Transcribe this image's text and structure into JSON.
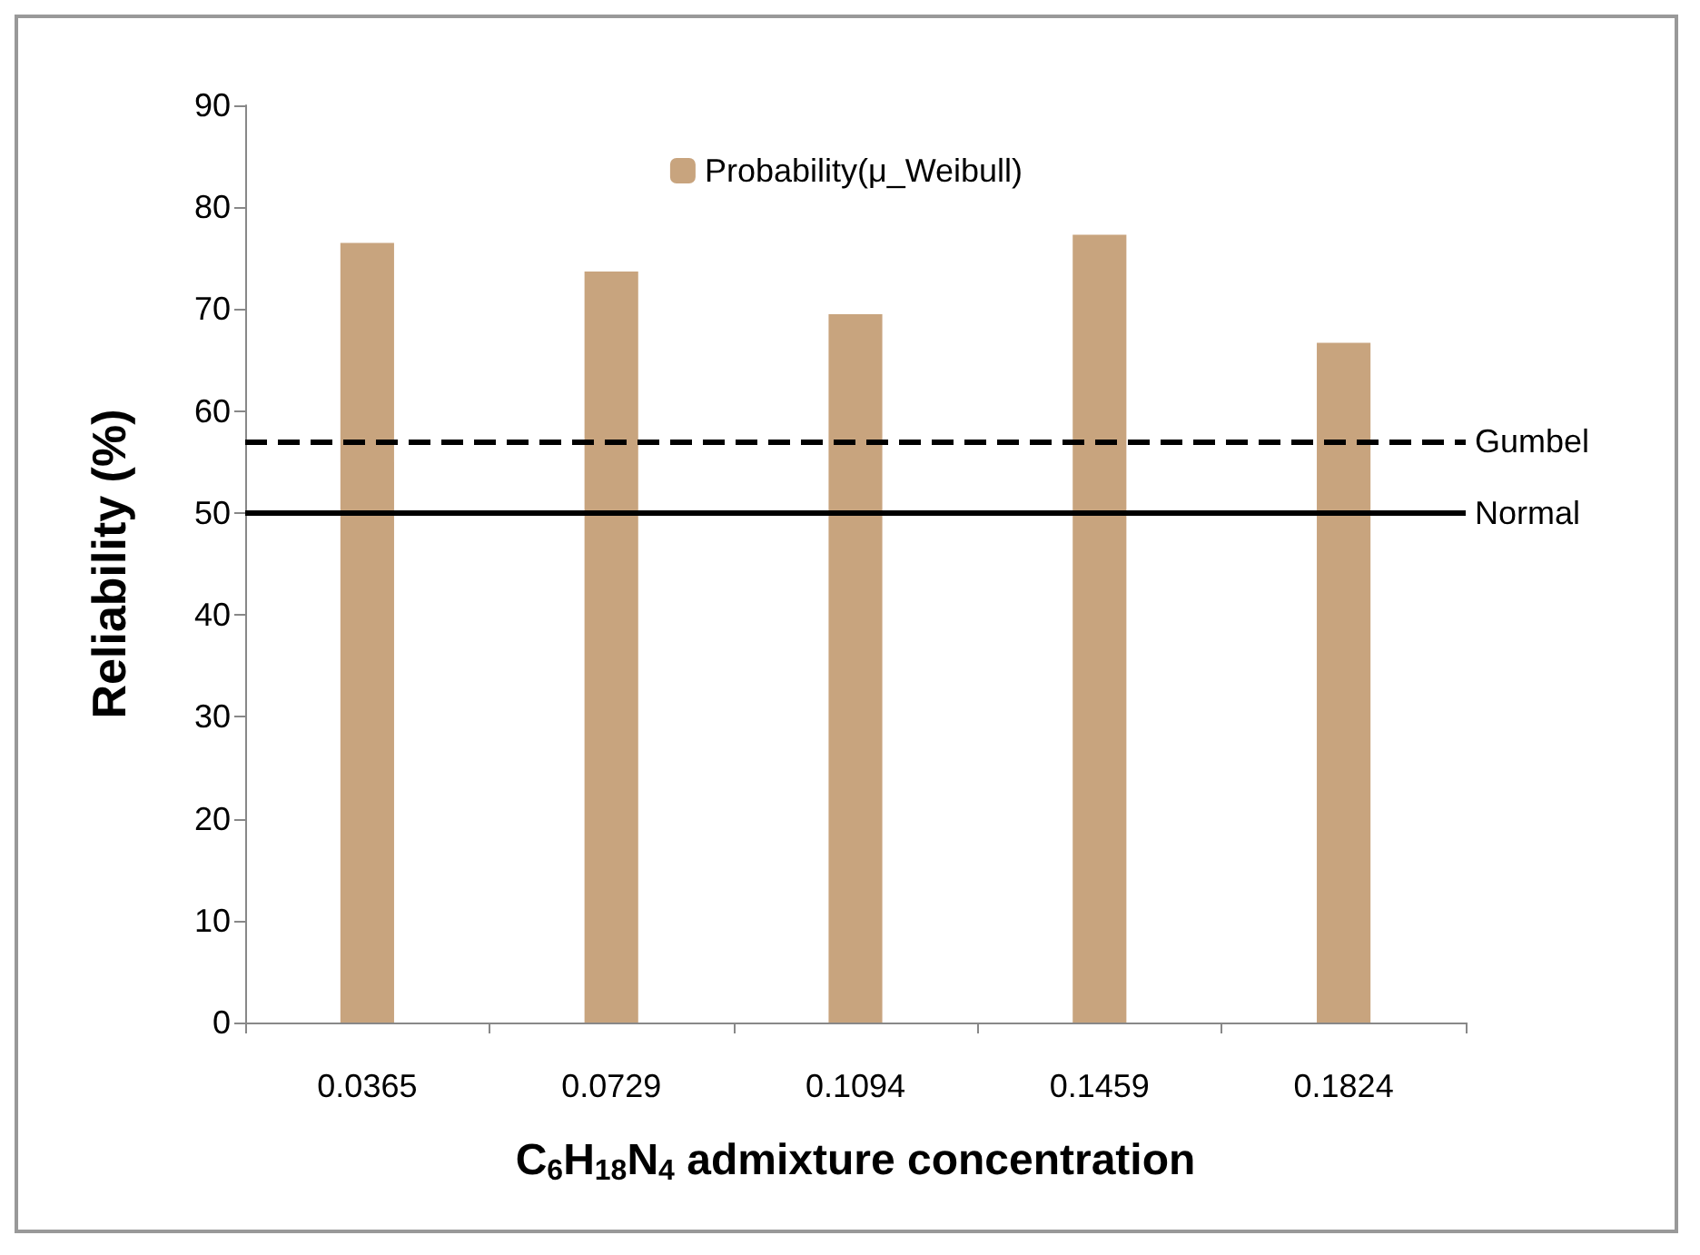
{
  "chart_data": {
    "type": "bar",
    "xlabel": "C$_{6}$H$_{18}$N$_{4}$ admixture concentration",
    "ylabel": "Reliability (%)",
    "categories": [
      "0.0365",
      "0.0729",
      "0.1094",
      "0.1459",
      "0.1824"
    ],
    "series": [
      {
        "name": "Probability(μ_Weibull)",
        "color": "#c8a47e",
        "values": [
          76.5,
          73.7,
          69.5,
          77.3,
          66.7
        ]
      }
    ],
    "ylim": [
      0,
      90
    ],
    "yticks": [
      0,
      10,
      20,
      30,
      40,
      50,
      60,
      70,
      80,
      90
    ],
    "grid": false,
    "legend": "top",
    "ref_lines": [
      {
        "axis": "y",
        "value": 57,
        "label": "Gumbel",
        "color": "#000000",
        "line_style": "dashed"
      },
      {
        "axis": "y",
        "value": 50,
        "label": "Normal",
        "color": "#000000",
        "line_style": "solid"
      }
    ]
  }
}
